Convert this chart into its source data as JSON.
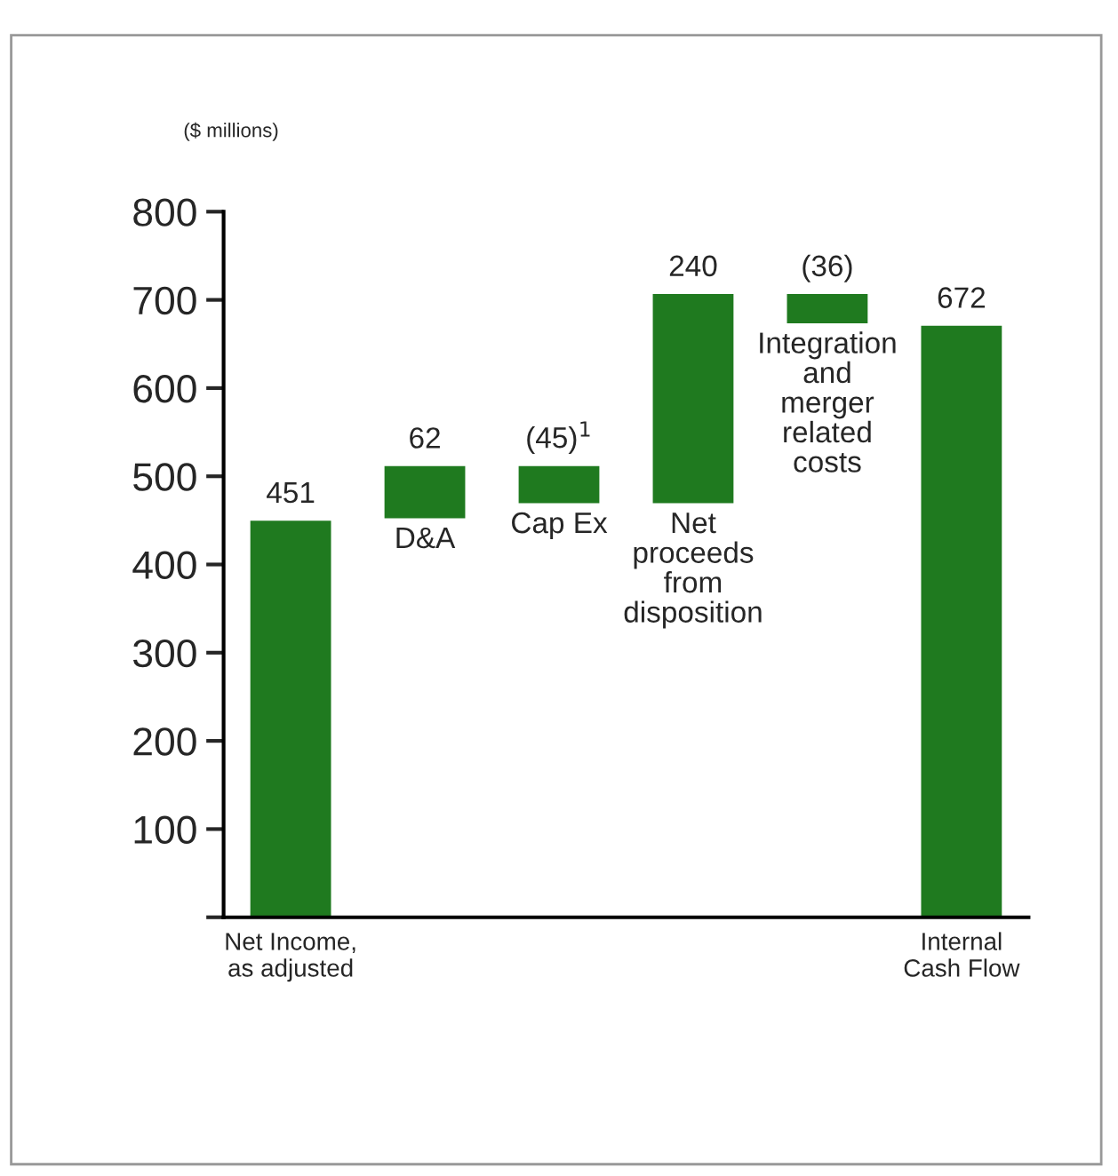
{
  "chart_data": {
    "type": "bar",
    "ylabel": "($ millions)",
    "categories": [
      "Net Income,\nas adjusted",
      "D&A",
      "Cap Ex",
      "Net\nproceeds\nfrom\ndisposition",
      "Integration\nand\nmerger\nrelated\ncosts",
      "Internal\nCash Flow"
    ],
    "values": [
      451,
      62,
      -45,
      240,
      -36,
      672
    ],
    "base": [
      0,
      451,
      513,
      468,
      708,
      0
    ],
    "value_labels": [
      "451",
      "62",
      "(45)$^{1}$",
      "240",
      "(36)",
      "672"
    ],
    "color": "#1f7a1f",
    "ylim": [
      0,
      800
    ],
    "yticks": [
      {
        "value": 0,
        "label": null
      },
      100,
      200,
      300,
      400,
      500,
      600,
      700,
      800
    ],
    "grid": false,
    "legend": false
  }
}
